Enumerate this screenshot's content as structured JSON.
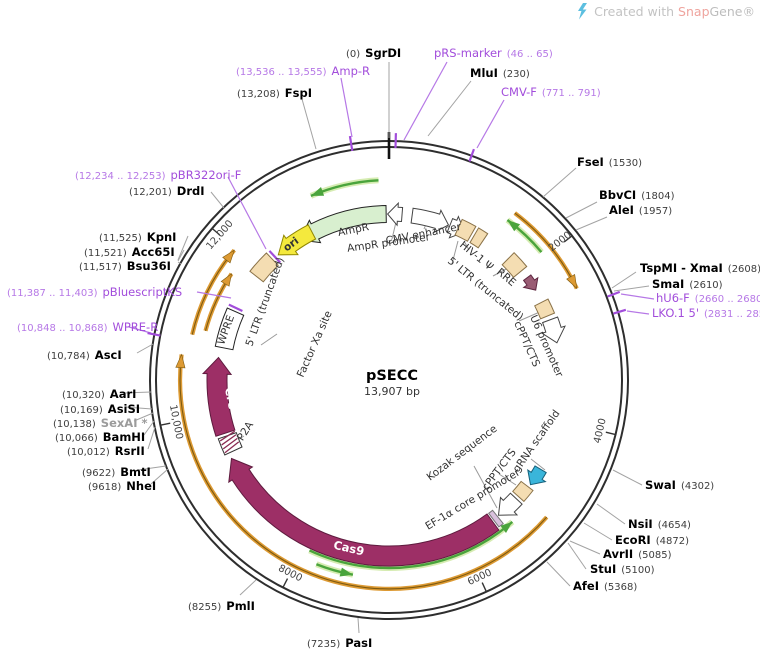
{
  "watermark": {
    "created_with": "Created with",
    "brand_snap": "Snap",
    "brand_gene": "Gene®"
  },
  "plasmid": {
    "name": "pSECC",
    "size": "13,907 bp"
  },
  "ticks": [
    {
      "label": "2000"
    },
    {
      "label": "4000"
    },
    {
      "label": "6000"
    },
    {
      "label": "8000"
    },
    {
      "label": "10,000"
    },
    {
      "label": "12,000"
    }
  ],
  "sites": [
    {
      "name": "SgrDI",
      "pos": "(0)",
      "type": "enzyme",
      "order": "pos-first"
    },
    {
      "name": "pRS-marker",
      "pos": "(46 .. 65)",
      "type": "primer",
      "order": "name-first"
    },
    {
      "name": "MluI",
      "pos": "(230)",
      "type": "enzyme",
      "order": "name-first"
    },
    {
      "name": "CMV-F",
      "pos": "(771 .. 791)",
      "type": "primer",
      "order": "name-first"
    },
    {
      "name": "FseI",
      "pos": "(1530)",
      "type": "enzyme",
      "order": "name-first"
    },
    {
      "name": "BbvCI",
      "pos": "(1804)",
      "type": "enzyme",
      "order": "name-first"
    },
    {
      "name": "AleI",
      "pos": "(1957)",
      "type": "enzyme",
      "order": "name-first"
    },
    {
      "name": "TspMI - XmaI",
      "pos": "(2608)",
      "type": "enzyme",
      "order": "name-first"
    },
    {
      "name": "SmaI",
      "pos": "(2610)",
      "type": "enzyme",
      "order": "name-first"
    },
    {
      "name": "hU6-F",
      "pos": "(2660 .. 2680)",
      "type": "primer",
      "order": "name-first"
    },
    {
      "name": "LKO.1 5'",
      "pos": "(2831 .. 2850)",
      "type": "primer",
      "order": "name-first"
    },
    {
      "name": "SwaI",
      "pos": "(4302)",
      "type": "enzyme",
      "order": "name-first"
    },
    {
      "name": "NsiI",
      "pos": "(4654)",
      "type": "enzyme",
      "order": "name-first"
    },
    {
      "name": "EcoRI",
      "pos": "(4872)",
      "type": "enzyme",
      "order": "name-first"
    },
    {
      "name": "AvrII",
      "pos": "(5085)",
      "type": "enzyme",
      "order": "name-first"
    },
    {
      "name": "StuI",
      "pos": "(5100)",
      "type": "enzyme",
      "order": "name-first"
    },
    {
      "name": "AfeI",
      "pos": "(5368)",
      "type": "enzyme",
      "order": "name-first"
    },
    {
      "name": "PasI",
      "pos": "(7235)",
      "type": "enzyme",
      "order": "pos-first"
    },
    {
      "name": "PmlI",
      "pos": "(8255)",
      "type": "enzyme",
      "order": "pos-first"
    },
    {
      "name": "NheI",
      "pos": "(9618)",
      "type": "enzyme",
      "order": "pos-first"
    },
    {
      "name": "BmtI",
      "pos": "(9622)",
      "type": "enzyme",
      "order": "pos-first"
    },
    {
      "name": "RsrII",
      "pos": "(10,012)",
      "type": "enzyme",
      "order": "pos-first"
    },
    {
      "name": "BamHI",
      "pos": "(10,066)",
      "type": "enzyme",
      "order": "pos-first"
    },
    {
      "name": "SexAI *",
      "pos": "(10,138)",
      "type": "enzyme-gray",
      "order": "pos-first"
    },
    {
      "name": "AsiSI",
      "pos": "(10,169)",
      "type": "enzyme",
      "order": "pos-first"
    },
    {
      "name": "AarI",
      "pos": "(10,320)",
      "type": "enzyme",
      "order": "pos-first"
    },
    {
      "name": "AscI",
      "pos": "(10,784)",
      "type": "enzyme",
      "order": "pos-first"
    },
    {
      "name": "WPRE-R",
      "pos": "(10,848 .. 10,868)",
      "type": "primer",
      "order": "pos-first"
    },
    {
      "name": "pBluescriptKS",
      "pos": "(11,387 .. 11,403)",
      "type": "primer",
      "order": "pos-first"
    },
    {
      "name": "Bsu36I",
      "pos": "(11,517)",
      "type": "enzyme",
      "order": "pos-first"
    },
    {
      "name": "Acc65I",
      "pos": "(11,521)",
      "type": "enzyme",
      "order": "pos-first"
    },
    {
      "name": "KpnI",
      "pos": "(11,525)",
      "type": "enzyme",
      "order": "pos-first"
    },
    {
      "name": "DrdI",
      "pos": "(12,201)",
      "type": "enzyme",
      "order": "pos-first"
    },
    {
      "name": "pBR322ori-F",
      "pos": "(12,234 .. 12,253)",
      "type": "primer",
      "order": "pos-first"
    },
    {
      "name": "FspI",
      "pos": "(13,208)",
      "type": "enzyme",
      "order": "pos-first"
    },
    {
      "name": "Amp-R",
      "pos": "(13,536 .. 13,555)",
      "type": "primer",
      "order": "pos-first"
    }
  ],
  "features": [
    {
      "label": "AmpR",
      "fill": "#d8efcf",
      "stroke": "#222222"
    },
    {
      "label": "AmpR promoter",
      "fill": "#ffffff",
      "stroke": "#444444"
    },
    {
      "label": "CMV enhancer",
      "fill": "#ffffff",
      "stroke": "#444444"
    },
    {
      "label": "5' LTR (truncated)",
      "fill": "#f4ddb2",
      "stroke": "#8a7248"
    },
    {
      "label": "HIV-1 Ψ",
      "fill": "#f4ddb2",
      "stroke": "#8a7248"
    },
    {
      "label": "RRE",
      "fill": "#f4ddb2",
      "stroke": "#8a7248"
    },
    {
      "label": "",
      "fill": "#9a5c74",
      "stroke": "#5e2640"
    },
    {
      "label": "cPPT/CTS",
      "fill": "#f4ddb2",
      "stroke": "#8a7248"
    },
    {
      "label": "U6 promoter",
      "fill": "#ffffff",
      "stroke": "#444444"
    },
    {
      "label": "gRNA scaffold",
      "fill": "#3ab5da",
      "stroke": "#15607a"
    },
    {
      "label": "cPPT/CTS",
      "fill": "#f4ddb2",
      "stroke": "#8a7248"
    },
    {
      "label": "EF-1α core promoter",
      "fill": "#ffffff",
      "stroke": "#444444"
    },
    {
      "label": "Kozak sequence",
      "fill": "#d9c1dd",
      "stroke": "#777777"
    },
    {
      "label": "Cas9",
      "fill": "#9d2f66",
      "stroke": "#5e1b3e"
    },
    {
      "label": "P2A",
      "fill": "#ffffff",
      "stroke": "#333333"
    },
    {
      "label": "Cre",
      "fill": "#9d2f66",
      "stroke": "#5e1b3e"
    },
    {
      "label": "Factor Xa site",
      "fill": "",
      "stroke": ""
    },
    {
      "label": "WPRE",
      "fill": "#ffffff",
      "stroke": "#222222"
    },
    {
      "label": "5' LTR (truncated)",
      "fill": "#f4ddb2",
      "stroke": "#8a7248"
    },
    {
      "label": "ori",
      "fill": "#f4e93d",
      "stroke": "#8f8500"
    }
  ],
  "colors": {
    "backbone": "#2e2e2e",
    "enzyme_name": "#000000",
    "enzyme_pos": "#3d3d3d",
    "enzyme_gray": "#9b9b9b",
    "primer_name": "#a24ddb",
    "primer_pos": "#b678e6",
    "leader": "#a3a3a3",
    "tick": "#444444",
    "feature_label": "#333333",
    "green_orf": "#4aa43c",
    "green_halo": "#d6ecb2",
    "orange_orf": "#dd9a33",
    "orange_core": "#7d5a10",
    "hatch": "#8a2b52",
    "logo_blue": "#3fb4da"
  }
}
